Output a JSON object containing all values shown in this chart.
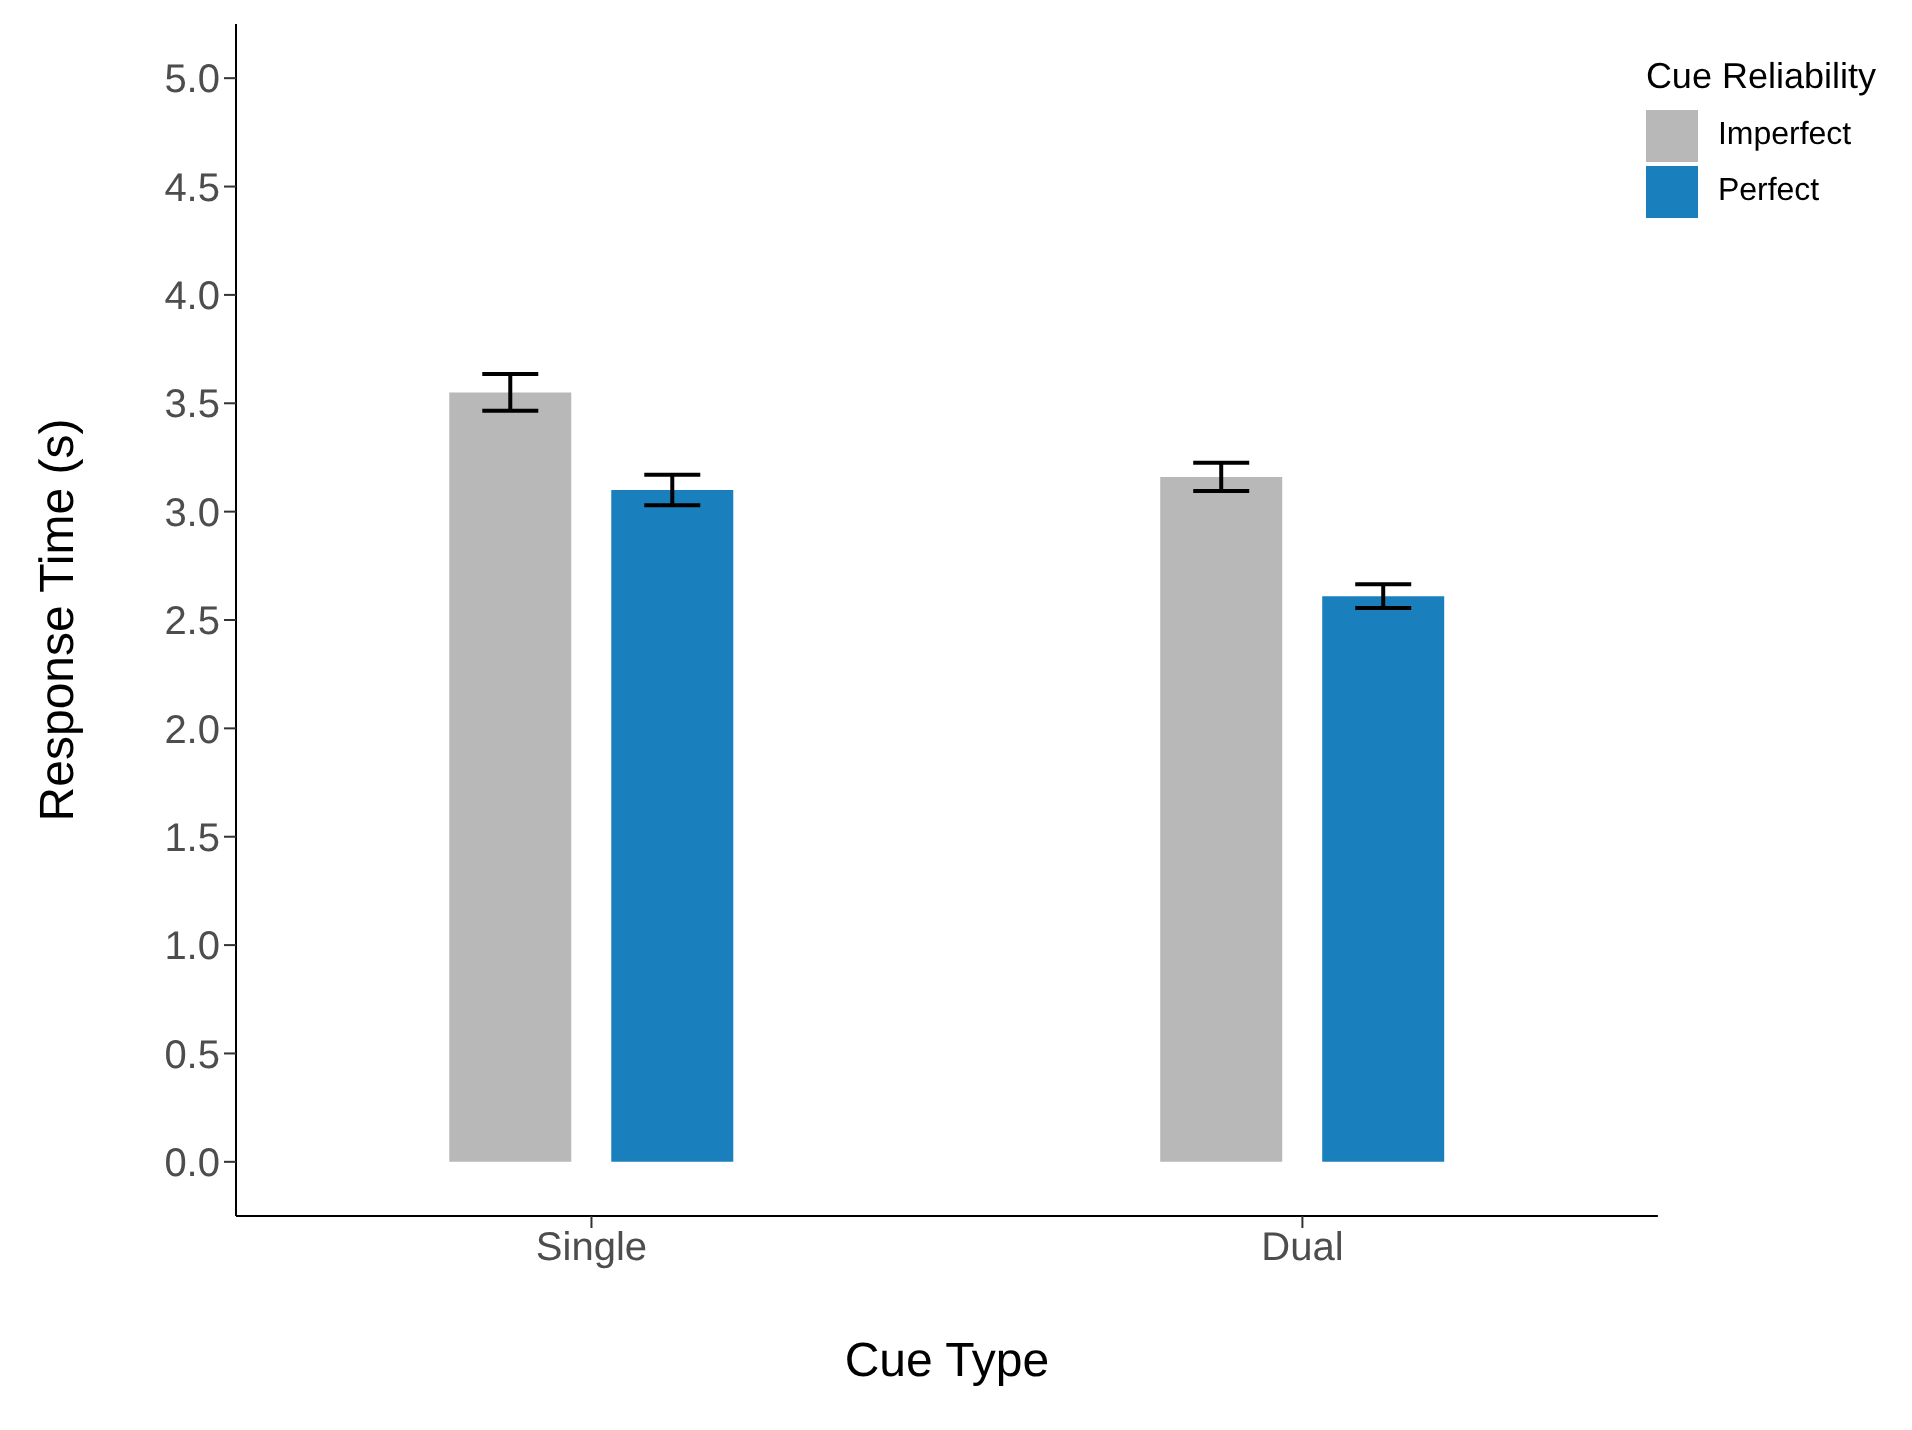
{
  "chart_data": {
    "type": "bar",
    "xlabel": "Cue Type",
    "ylabel": "Response Time (s)",
    "legend_title": "Cue Reliability",
    "categories": [
      "Single",
      "Dual"
    ],
    "series": [
      {
        "name": "Imperfect",
        "color": "#b8b8b8",
        "values": [
          3.55,
          3.16
        ],
        "errors": [
          0.085,
          0.065
        ]
      },
      {
        "name": "Perfect",
        "color": "#1a7fbd",
        "values": [
          3.1,
          2.61
        ],
        "errors": [
          0.07,
          0.055
        ]
      }
    ],
    "ylim": [
      -0.25,
      5.25
    ],
    "yticks": [
      {
        "value": 0,
        "label": "0.0"
      },
      {
        "value": 0.5,
        "label": "0.5"
      },
      {
        "value": 1,
        "label": "1.0"
      },
      {
        "value": 1.5,
        "label": "1.5"
      },
      {
        "value": 2,
        "label": "2.0"
      },
      {
        "value": 2.5,
        "label": "2.5"
      },
      {
        "value": 3,
        "label": "3.0"
      },
      {
        "value": 3.5,
        "label": "3.5"
      },
      {
        "value": 4,
        "label": "4.0"
      },
      {
        "value": 4.5,
        "label": "4.5"
      },
      {
        "value": 5,
        "label": "5.0"
      }
    ],
    "grid": false,
    "legend": "top right"
  }
}
